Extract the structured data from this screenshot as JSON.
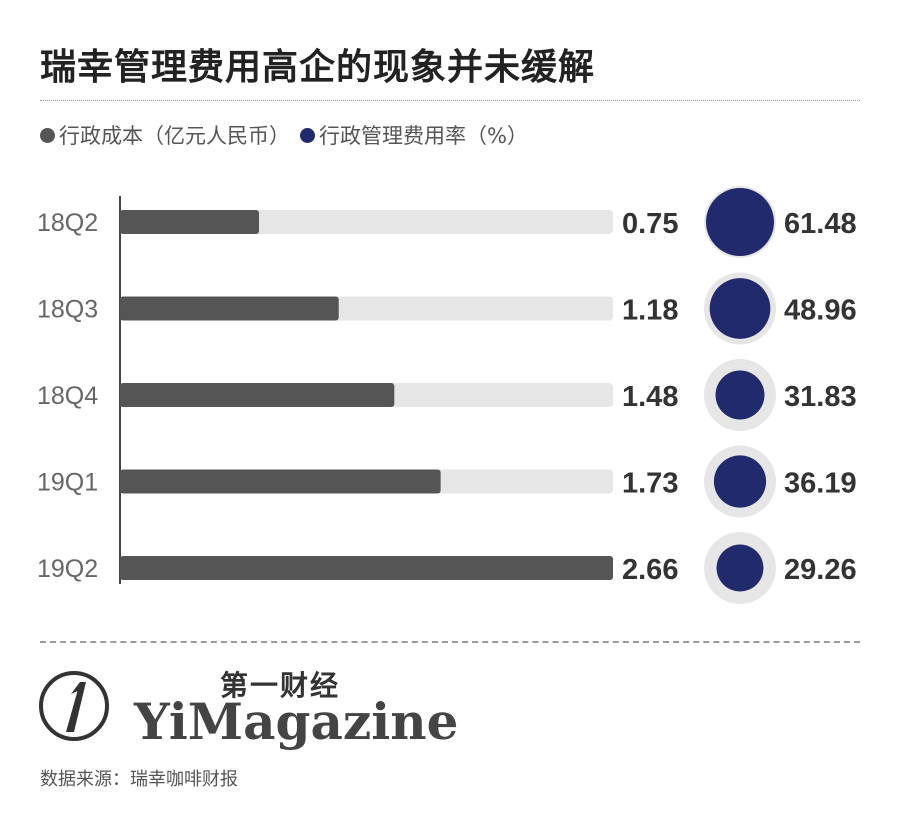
{
  "title": "瑞幸管理费用高企的现象并未缓解",
  "legend": [
    {
      "label": "行政成本（亿元人民币）",
      "color": "#555555"
    },
    {
      "label": "行政管理费用率（%）",
      "color": "#222a6e"
    }
  ],
  "chart_data": {
    "type": "bar",
    "categories": [
      "18Q2",
      "18Q3",
      "18Q4",
      "19Q1",
      "19Q2"
    ],
    "series": [
      {
        "name": "行政成本（亿元人民币）",
        "values": [
          0.75,
          1.18,
          1.48,
          1.73,
          2.66
        ],
        "labels": [
          "0.75",
          "1.18",
          "1.48",
          "1.73",
          "2.66"
        ],
        "color": "#555555",
        "track_color": "#e6e6e6"
      },
      {
        "name": "行政管理费用率（%）",
        "values": [
          61.48,
          48.96,
          31.83,
          36.19,
          29.26
        ],
        "labels": [
          "61.48",
          "48.96",
          "31.83",
          "36.19",
          "29.26"
        ],
        "color": "#222a6e",
        "ring_color": "#e6e6e6"
      }
    ],
    "xlim": [
      0,
      2.66
    ]
  },
  "brand": {
    "mark": "1",
    "name_cn": "第一财经",
    "name_en": "YiMagazine"
  },
  "source": "数据来源：瑞幸咖啡财报"
}
